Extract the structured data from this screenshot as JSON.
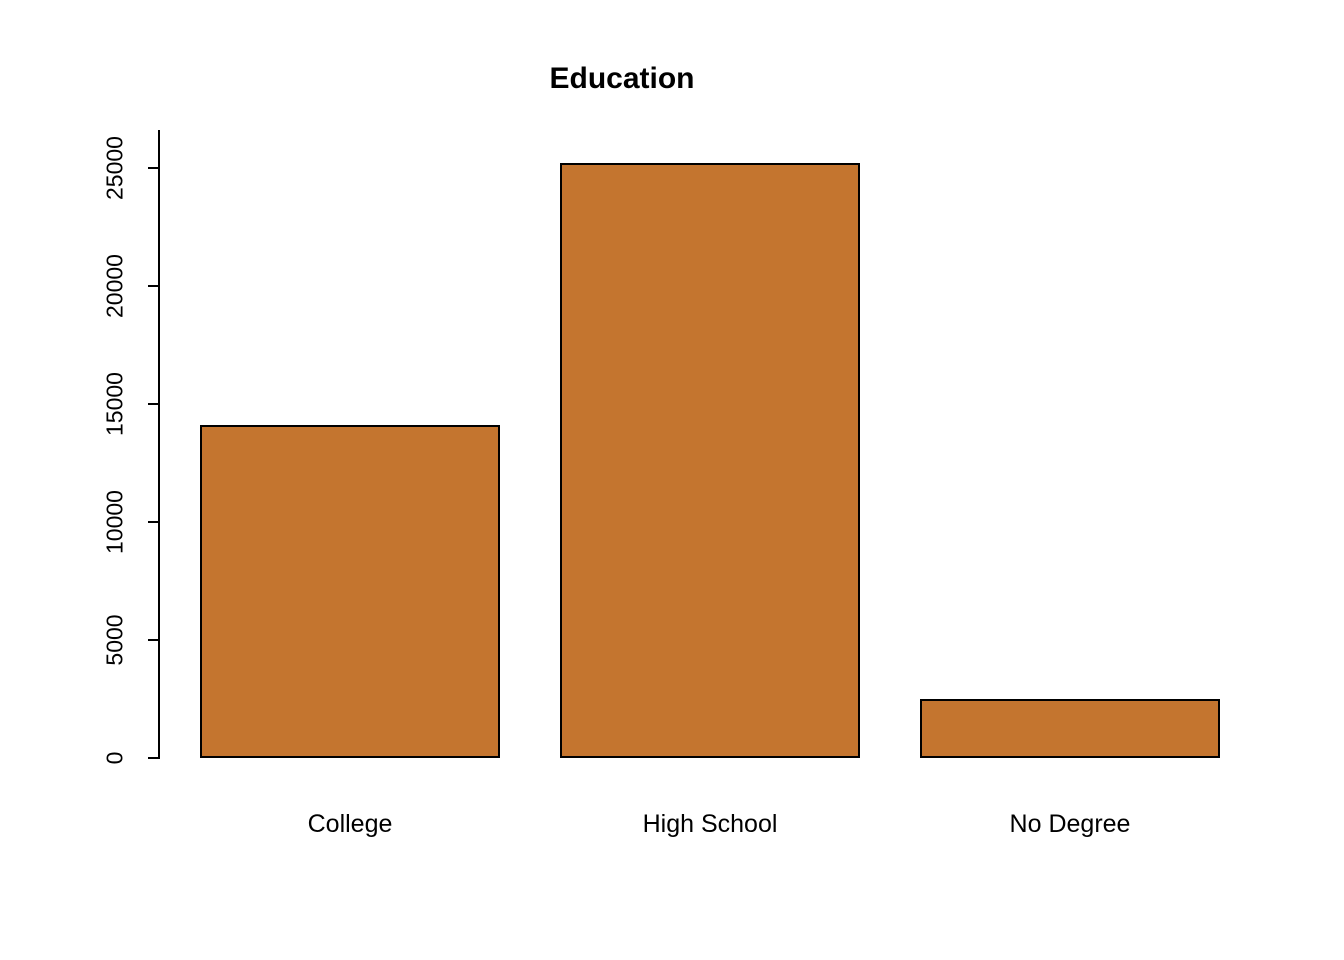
{
  "chart_data": {
    "type": "bar",
    "title": "Education",
    "categories": [
      "College",
      "High School",
      "No Degree"
    ],
    "values": [
      14100,
      25200,
      2500
    ],
    "xlabel": "",
    "ylabel": "",
    "ylim": [
      0,
      25000
    ],
    "yticks": [
      0,
      5000,
      10000,
      15000,
      20000,
      25000
    ],
    "grid": false,
    "legend": "none",
    "bar_fill_color": "#C4752F",
    "bar_border_color": "#000000",
    "background_color": "#FFFFFF"
  },
  "layout_note": ""
}
